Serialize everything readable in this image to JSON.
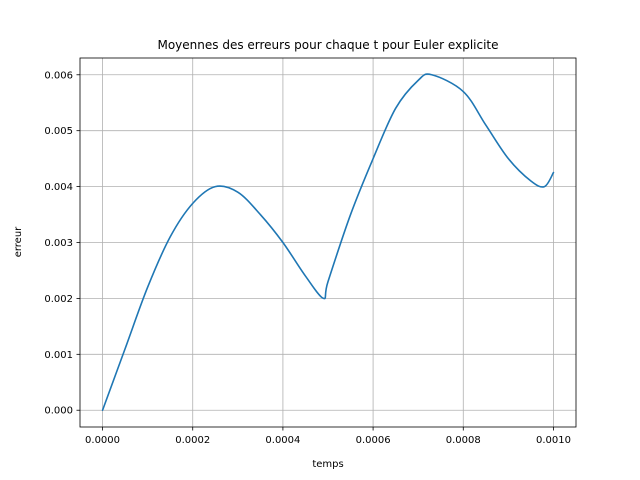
{
  "chart_data": {
    "type": "line",
    "title": "Moyennes des erreurs pour chaque t pour Euler explicite",
    "xlabel": "temps",
    "ylabel": "erreur",
    "xlim": [
      -5e-05,
      0.00105
    ],
    "ylim": [
      -0.0003,
      0.0063
    ],
    "xticks": [
      0.0,
      0.0002,
      0.0004,
      0.0006,
      0.0008,
      0.001
    ],
    "xtick_labels": [
      "0.0000",
      "0.0002",
      "0.0004",
      "0.0006",
      "0.0008",
      "0.0010"
    ],
    "yticks": [
      0.0,
      0.001,
      0.002,
      0.003,
      0.004,
      0.005,
      0.006
    ],
    "ytick_labels": [
      "0.000",
      "0.001",
      "0.002",
      "0.003",
      "0.004",
      "0.005",
      "0.006"
    ],
    "grid": true,
    "line_color": "#1f77b4",
    "series": [
      {
        "x": [
          0.0,
          5e-05,
          0.0001,
          0.00015,
          0.0002,
          0.00025,
          0.0003,
          0.00035,
          0.0004,
          0.00045,
          0.00049,
          0.0005,
          0.00055,
          0.0006,
          0.00065,
          0.0007,
          0.00073,
          0.0008,
          0.00085,
          0.0009,
          0.00095,
          0.00098,
          0.001
        ],
        "y": [
          0.0,
          0.0011,
          0.0022,
          0.0031,
          0.0037,
          0.004,
          0.0039,
          0.0035,
          0.003,
          0.0024,
          0.002,
          0.0023,
          0.0035,
          0.0045,
          0.0054,
          0.0059,
          0.006,
          0.0057,
          0.0051,
          0.0045,
          0.0041,
          0.004,
          0.00425
        ]
      }
    ]
  }
}
